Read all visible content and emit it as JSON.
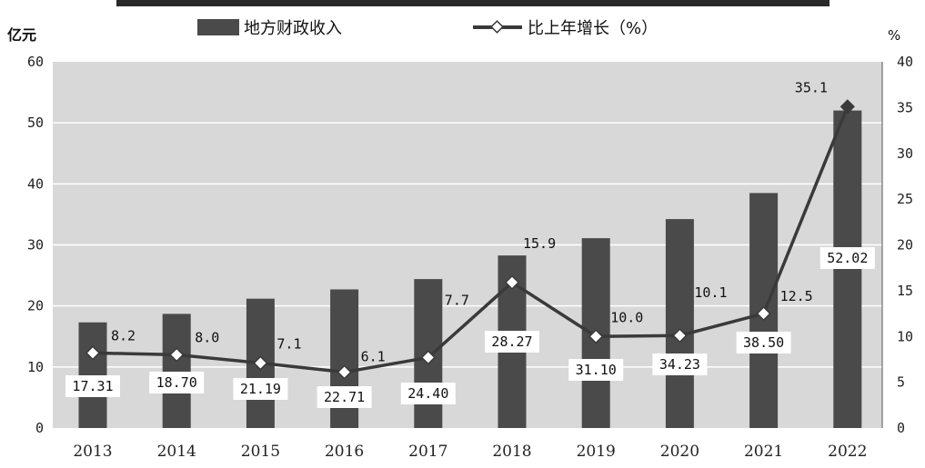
{
  "chart_data": {
    "type": "bar",
    "categories": [
      "2013",
      "2014",
      "2015",
      "2016",
      "2017",
      "2018",
      "2019",
      "2020",
      "2021",
      "2022"
    ],
    "series": [
      {
        "name": "地方财政收入",
        "type": "bar",
        "axis": "left",
        "values": [
          17.31,
          18.7,
          21.19,
          22.71,
          24.4,
          28.27,
          31.1,
          34.23,
          38.5,
          52.02
        ],
        "labels": [
          "17.31",
          "18.70",
          "21.19",
          "22.71",
          "24.40",
          "28.27",
          "31.10",
          "34.23",
          "38.50",
          "52.02"
        ],
        "color": "#4a4a4a"
      },
      {
        "name": "比上年增长（%）",
        "type": "line",
        "axis": "right",
        "values": [
          8.2,
          8.0,
          7.1,
          6.1,
          7.7,
          15.9,
          10.0,
          10.1,
          12.5,
          35.1
        ],
        "labels": [
          "8.2",
          "8.0",
          "7.1",
          "6.1",
          "7.7",
          "15.9",
          "10.0",
          "10.1",
          "12.5",
          "35.1"
        ],
        "color": "#3a3a3a"
      }
    ],
    "y_left": {
      "unit": "亿元",
      "range": [
        0,
        60
      ],
      "ticks": [
        "0",
        "10",
        "20",
        "30",
        "40",
        "50",
        "60"
      ]
    },
    "y_right": {
      "unit": "%",
      "range": [
        0,
        40
      ],
      "ticks": [
        "0",
        "5",
        "10",
        "15",
        "20",
        "25",
        "30",
        "35",
        "40"
      ]
    },
    "grid": true,
    "legend_position": "top",
    "plot_background": "#d8d8d8"
  }
}
